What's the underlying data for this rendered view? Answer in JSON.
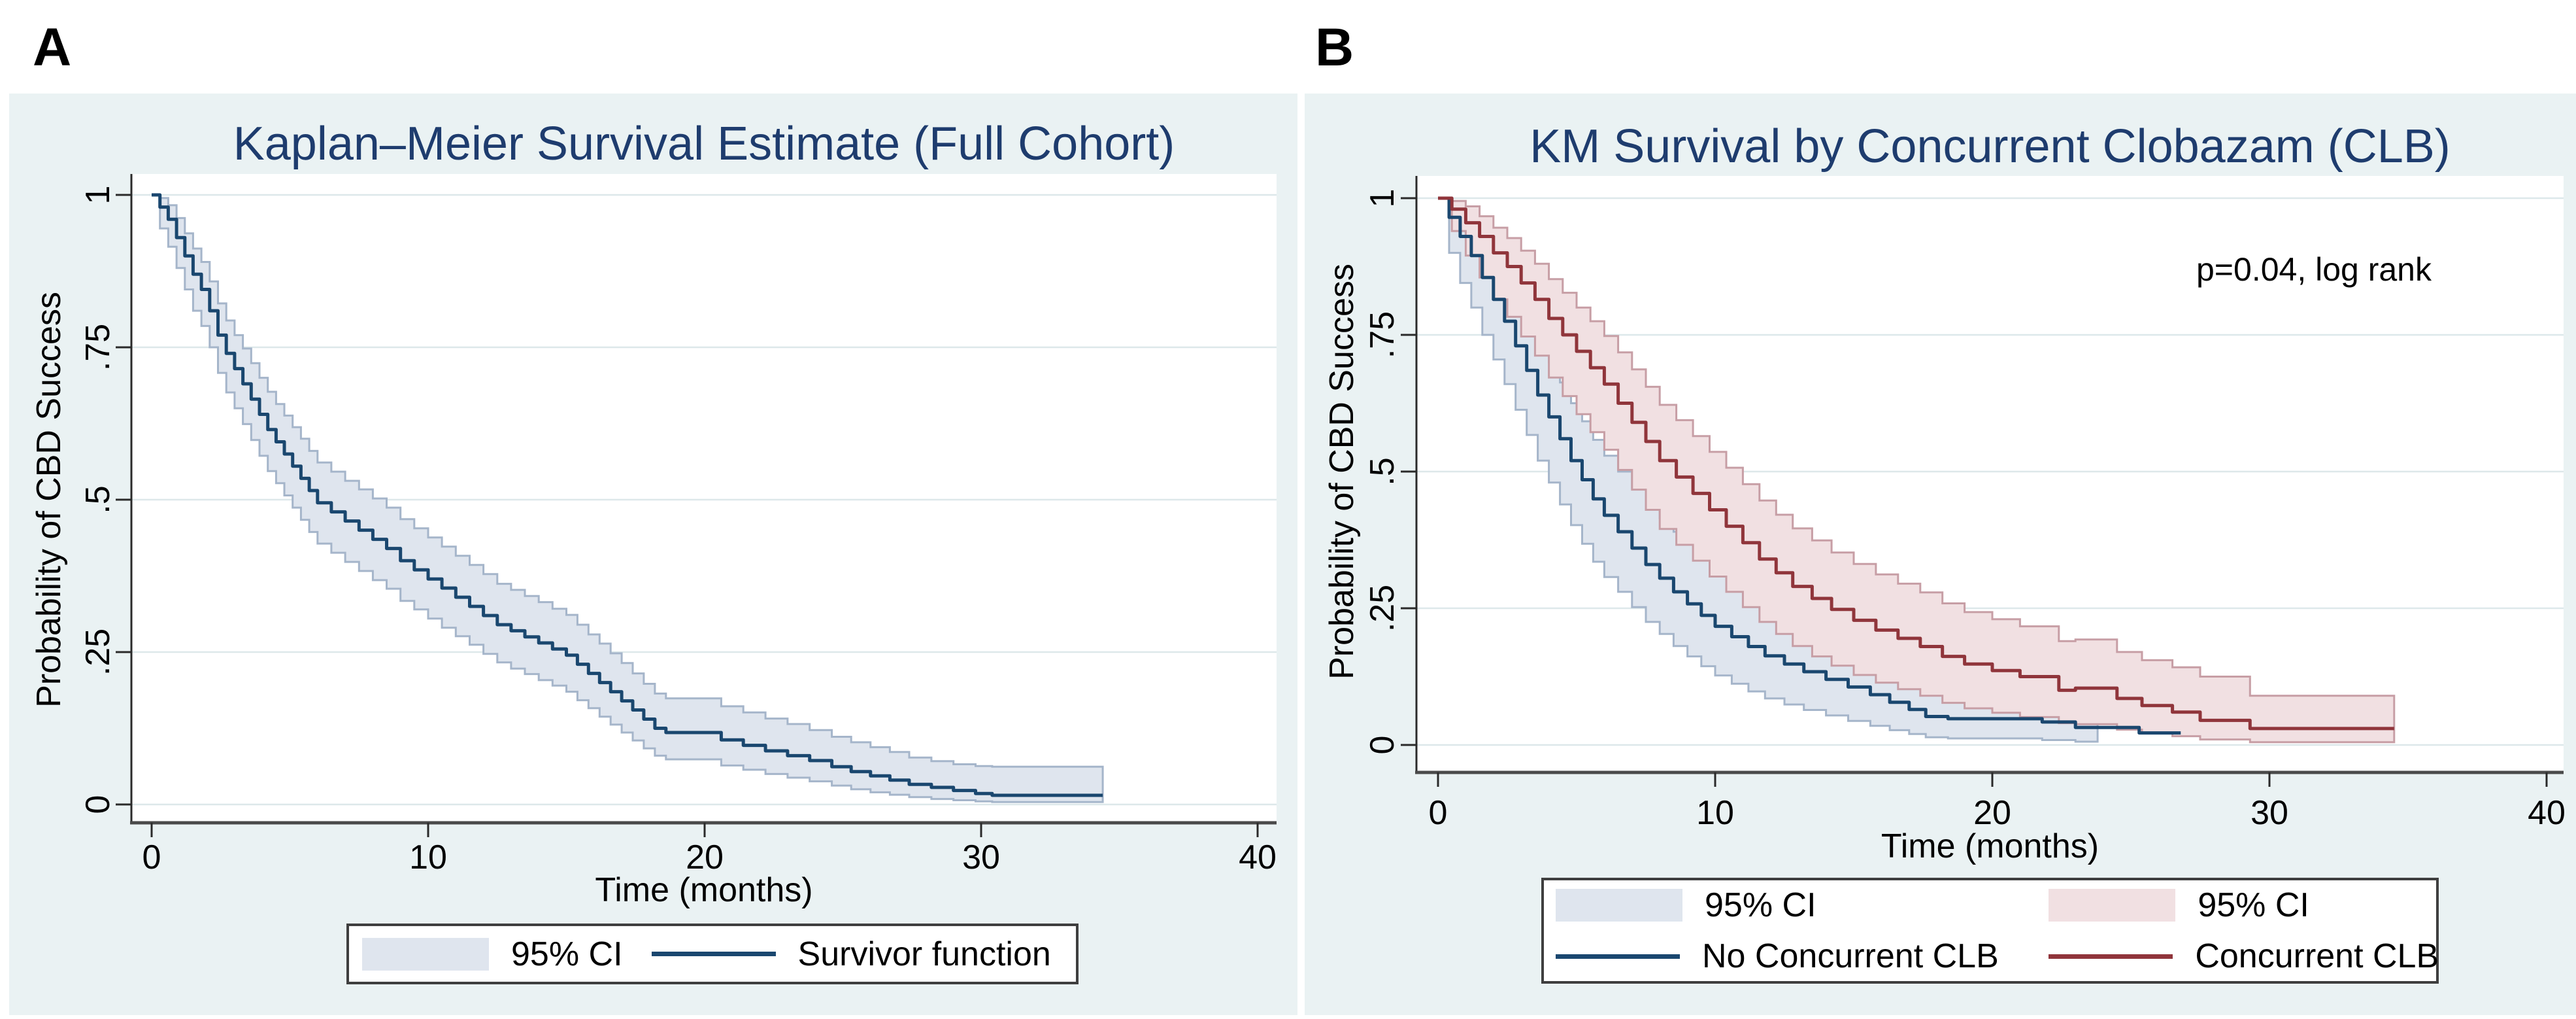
{
  "figure": {
    "panel_a_label": "A",
    "panel_b_label": "B"
  },
  "colors": {
    "panel_background": "#eaf2f3",
    "plot_background": "#ffffff",
    "gridline": "#dde8ea",
    "title_text": "#1e3c6e",
    "axis_line": "#4a4a4a",
    "navy_line": "#1a476f",
    "maroon_line": "#90353b",
    "blue_ci_fill": "#dfe5ee",
    "blue_ci_edge": "#a5b5ca",
    "pink_ci_fill": "#f1e0e2",
    "pink_ci_edge": "#c79ea5"
  },
  "chart_data": [
    {
      "type": "line",
      "subtype": "kaplan-meier-step",
      "panel": "A",
      "title": "Kaplan–Meier Survival Estimate (Full Cohort)",
      "xlabel": "Time (months)",
      "ylabel": "Probability of CBD Success",
      "annotation": "",
      "xlim": [
        0,
        40
      ],
      "ylim": [
        0,
        1
      ],
      "grid": true,
      "legend_position": "below-center",
      "x_ticks": [
        {
          "v": 0,
          "label": "0"
        },
        {
          "v": 10,
          "label": "10"
        },
        {
          "v": 20,
          "label": "20"
        },
        {
          "v": 30,
          "label": "30"
        },
        {
          "v": 40,
          "label": "40"
        }
      ],
      "y_ticks": [
        {
          "v": 0,
          "label": "0"
        },
        {
          "v": 0.25,
          "label": ".25"
        },
        {
          "v": 0.5,
          "label": ".5"
        },
        {
          "v": 0.75,
          "label": ".75"
        },
        {
          "v": 1,
          "label": "1"
        }
      ],
      "legend": [
        {
          "swatch": "band",
          "label": "95% CI",
          "fill": "#dfe5ee",
          "edge": "#a5b5ca"
        },
        {
          "swatch": "line",
          "label": "Survivor function",
          "color": "#1a476f"
        }
      ],
      "series": [
        {
          "name": "Survivor function",
          "line_color": "#1a476f",
          "band_fill": "#dfe5ee",
          "band_edge": "#a5b5ca",
          "t_end": 34.4,
          "ci_end": 34.4,
          "steps": [
            [
              0,
              1,
              1,
              1
            ],
            [
              0.3,
              0.98,
              0.945,
              0.995
            ],
            [
              0.6,
              0.96,
              0.915,
              0.983
            ],
            [
              0.9,
              0.93,
              0.88,
              0.962
            ],
            [
              1.2,
              0.9,
              0.845,
              0.937
            ],
            [
              1.5,
              0.87,
              0.81,
              0.912
            ],
            [
              1.8,
              0.845,
              0.785,
              0.89
            ],
            [
              2.1,
              0.81,
              0.75,
              0.858
            ],
            [
              2.4,
              0.77,
              0.708,
              0.822
            ],
            [
              2.7,
              0.74,
              0.676,
              0.794
            ],
            [
              3,
              0.715,
              0.65,
              0.77
            ],
            [
              3.3,
              0.69,
              0.624,
              0.748
            ],
            [
              3.6,
              0.665,
              0.598,
              0.724
            ],
            [
              3.9,
              0.64,
              0.572,
              0.7
            ],
            [
              4.2,
              0.615,
              0.547,
              0.677
            ],
            [
              4.5,
              0.595,
              0.527,
              0.657
            ],
            [
              4.8,
              0.575,
              0.507,
              0.638
            ],
            [
              5.1,
              0.555,
              0.487,
              0.619
            ],
            [
              5.4,
              0.535,
              0.467,
              0.6
            ],
            [
              5.7,
              0.515,
              0.447,
              0.58
            ],
            [
              6,
              0.495,
              0.428,
              0.561
            ],
            [
              6.5,
              0.48,
              0.413,
              0.546
            ],
            [
              7,
              0.465,
              0.398,
              0.531
            ],
            [
              7.5,
              0.45,
              0.383,
              0.517
            ],
            [
              8,
              0.435,
              0.368,
              0.502
            ],
            [
              8.5,
              0.42,
              0.354,
              0.487
            ],
            [
              9,
              0.4,
              0.334,
              0.468
            ],
            [
              9.5,
              0.385,
              0.32,
              0.453
            ],
            [
              10,
              0.37,
              0.305,
              0.438
            ],
            [
              10.5,
              0.355,
              0.29,
              0.423
            ],
            [
              11,
              0.34,
              0.276,
              0.408
            ],
            [
              11.5,
              0.325,
              0.262,
              0.393
            ],
            [
              12,
              0.31,
              0.247,
              0.378
            ],
            [
              12.5,
              0.295,
              0.233,
              0.362
            ],
            [
              13,
              0.285,
              0.223,
              0.352
            ],
            [
              13.5,
              0.275,
              0.214,
              0.342
            ],
            [
              14,
              0.265,
              0.204,
              0.332
            ],
            [
              14.5,
              0.255,
              0.195,
              0.321
            ],
            [
              15,
              0.245,
              0.185,
              0.311
            ],
            [
              15.4,
              0.23,
              0.171,
              0.295
            ],
            [
              15.8,
              0.215,
              0.158,
              0.279
            ],
            [
              16.2,
              0.2,
              0.144,
              0.264
            ],
            [
              16.6,
              0.185,
              0.131,
              0.248
            ],
            [
              17,
              0.17,
              0.118,
              0.232
            ],
            [
              17.4,
              0.155,
              0.105,
              0.215
            ],
            [
              17.8,
              0.14,
              0.092,
              0.198
            ],
            [
              18.2,
              0.125,
              0.08,
              0.182
            ],
            [
              18.6,
              0.118,
              0.074,
              0.174
            ],
            [
              20.6,
              0.106,
              0.064,
              0.161
            ],
            [
              21.4,
              0.097,
              0.057,
              0.151
            ],
            [
              22.2,
              0.088,
              0.05,
              0.141
            ],
            [
              23,
              0.08,
              0.044,
              0.132
            ],
            [
              23.8,
              0.072,
              0.038,
              0.122
            ],
            [
              24.6,
              0.062,
              0.031,
              0.111
            ],
            [
              25.3,
              0.054,
              0.025,
              0.102
            ],
            [
              26,
              0.047,
              0.02,
              0.094
            ],
            [
              26.7,
              0.04,
              0.016,
              0.086
            ],
            [
              27.4,
              0.033,
              0.012,
              0.077
            ],
            [
              28.2,
              0.028,
              0.009,
              0.071
            ],
            [
              29,
              0.023,
              0.007,
              0.066
            ],
            [
              29.8,
              0.018,
              0.005,
              0.063
            ],
            [
              30.4,
              0.015,
              0.004,
              0.062
            ]
          ]
        }
      ]
    },
    {
      "type": "line",
      "subtype": "kaplan-meier-step",
      "panel": "B",
      "title": "KM Survival by Concurrent Clobazam (CLB)",
      "xlabel": "Time (months)",
      "ylabel": "Probability of CBD Success",
      "annotation": "p=0.04, log rank",
      "xlim": [
        0,
        40
      ],
      "ylim": [
        0,
        1
      ],
      "grid": true,
      "legend_position": "below-center",
      "x_ticks": [
        {
          "v": 0,
          "label": "0"
        },
        {
          "v": 10,
          "label": "10"
        },
        {
          "v": 20,
          "label": "20"
        },
        {
          "v": 30,
          "label": "30"
        },
        {
          "v": 40,
          "label": "40"
        }
      ],
      "y_ticks": [
        {
          "v": 0,
          "label": "0"
        },
        {
          "v": 0.25,
          "label": ".25"
        },
        {
          "v": 0.5,
          "label": ".5"
        },
        {
          "v": 0.75,
          "label": ".75"
        },
        {
          "v": 1,
          "label": "1"
        }
      ],
      "legend": [
        {
          "swatch": "band",
          "label": "95% CI",
          "fill": "#dfe5ee",
          "edge": "#a5b5ca"
        },
        {
          "swatch": "band",
          "label": "95% CI",
          "fill": "#f1e0e2",
          "edge": "#c79ea5"
        },
        {
          "swatch": "line",
          "label": "No Concurrent CLB",
          "color": "#1a476f"
        },
        {
          "swatch": "line",
          "label": "Concurrent CLB",
          "color": "#90353b"
        }
      ],
      "series": [
        {
          "name": "No Concurrent CLB",
          "line_color": "#1a476f",
          "band_fill": "#dfe5ee",
          "band_edge": "#a5b5ca",
          "t_end": 26.8,
          "ci_end": 23.8,
          "steps": [
            [
              0,
              1,
              1,
              1
            ],
            [
              0.4,
              0.965,
              0.9,
              0.99
            ],
            [
              0.8,
              0.93,
              0.845,
              0.968
            ],
            [
              1.2,
              0.895,
              0.8,
              0.945
            ],
            [
              1.6,
              0.855,
              0.75,
              0.92
            ],
            [
              2,
              0.815,
              0.705,
              0.888
            ],
            [
              2.4,
              0.775,
              0.66,
              0.855
            ],
            [
              2.8,
              0.73,
              0.613,
              0.818
            ],
            [
              3.2,
              0.685,
              0.567,
              0.779
            ],
            [
              3.6,
              0.64,
              0.52,
              0.738
            ],
            [
              4,
              0.6,
              0.48,
              0.7
            ],
            [
              4.4,
              0.56,
              0.44,
              0.663
            ],
            [
              4.8,
              0.52,
              0.402,
              0.625
            ],
            [
              5.2,
              0.485,
              0.368,
              0.592
            ],
            [
              5.6,
              0.45,
              0.335,
              0.558
            ],
            [
              6,
              0.42,
              0.307,
              0.529
            ],
            [
              6.5,
              0.39,
              0.28,
              0.5
            ],
            [
              7,
              0.36,
              0.252,
              0.47
            ],
            [
              7.5,
              0.33,
              0.225,
              0.44
            ],
            [
              8,
              0.305,
              0.203,
              0.415
            ],
            [
              8.5,
              0.28,
              0.181,
              0.39
            ],
            [
              9,
              0.258,
              0.162,
              0.367
            ],
            [
              9.5,
              0.237,
              0.144,
              0.345
            ],
            [
              10,
              0.217,
              0.127,
              0.325
            ],
            [
              10.6,
              0.198,
              0.112,
              0.305
            ],
            [
              11.2,
              0.18,
              0.098,
              0.285
            ],
            [
              11.8,
              0.163,
              0.085,
              0.267
            ],
            [
              12.5,
              0.148,
              0.074,
              0.25
            ],
            [
              13.2,
              0.134,
              0.064,
              0.234
            ],
            [
              14,
              0.12,
              0.054,
              0.218
            ],
            [
              14.8,
              0.106,
              0.044,
              0.2
            ],
            [
              15.6,
              0.092,
              0.035,
              0.183
            ],
            [
              16.3,
              0.078,
              0.027,
              0.166
            ],
            [
              17,
              0.065,
              0.02,
              0.15
            ],
            [
              17.6,
              0.052,
              0.014,
              0.133
            ],
            [
              18.4,
              0.048,
              0.012,
              0.128
            ],
            [
              21.8,
              0.042,
              0.009,
              0.12
            ],
            [
              23,
              0.032,
              0.006,
              0.11
            ],
            [
              25.3,
              0.022,
              0.005,
              0.1
            ]
          ]
        },
        {
          "name": "Concurrent CLB",
          "line_color": "#90353b",
          "band_fill": "#f1e0e2",
          "band_edge": "#c79ea5",
          "t_end": 34.5,
          "ci_end": 34.5,
          "steps": [
            [
              0,
              1,
              1,
              1
            ],
            [
              0.5,
              0.98,
              0.94,
              0.995
            ],
            [
              1,
              0.955,
              0.895,
              0.985
            ],
            [
              1.5,
              0.93,
              0.855,
              0.967
            ],
            [
              2,
              0.9,
              0.815,
              0.946
            ],
            [
              2.5,
              0.875,
              0.783,
              0.927
            ],
            [
              3,
              0.845,
              0.747,
              0.904
            ],
            [
              3.5,
              0.815,
              0.712,
              0.88
            ],
            [
              4,
              0.78,
              0.672,
              0.852
            ],
            [
              4.5,
              0.75,
              0.638,
              0.827
            ],
            [
              5,
              0.72,
              0.605,
              0.8
            ],
            [
              5.5,
              0.69,
              0.572,
              0.775
            ],
            [
              6,
              0.66,
              0.54,
              0.748
            ],
            [
              6.5,
              0.625,
              0.503,
              0.718
            ],
            [
              7,
              0.59,
              0.467,
              0.687
            ],
            [
              7.5,
              0.555,
              0.43,
              0.655
            ],
            [
              8,
              0.52,
              0.395,
              0.622
            ],
            [
              8.6,
              0.49,
              0.366,
              0.594
            ],
            [
              9.2,
              0.46,
              0.337,
              0.565
            ],
            [
              9.8,
              0.43,
              0.308,
              0.536
            ],
            [
              10.4,
              0.4,
              0.28,
              0.507
            ],
            [
              11,
              0.37,
              0.252,
              0.477
            ],
            [
              11.6,
              0.34,
              0.225,
              0.447
            ],
            [
              12.2,
              0.315,
              0.203,
              0.421
            ],
            [
              12.8,
              0.29,
              0.181,
              0.396
            ],
            [
              13.5,
              0.268,
              0.162,
              0.374
            ],
            [
              14.2,
              0.248,
              0.145,
              0.352
            ],
            [
              15,
              0.228,
              0.128,
              0.331
            ],
            [
              15.8,
              0.21,
              0.114,
              0.312
            ],
            [
              16.6,
              0.195,
              0.102,
              0.295
            ],
            [
              17.4,
              0.18,
              0.09,
              0.279
            ],
            [
              18.2,
              0.162,
              0.077,
              0.259
            ],
            [
              19,
              0.148,
              0.067,
              0.243
            ],
            [
              20,
              0.136,
              0.059,
              0.23
            ],
            [
              21,
              0.125,
              0.051,
              0.217
            ],
            [
              22.4,
              0.1,
              0.04,
              0.19
            ],
            [
              23,
              0.104,
              0.038,
              0.193
            ],
            [
              24.5,
              0.085,
              0.028,
              0.17
            ],
            [
              25.4,
              0.072,
              0.022,
              0.155
            ],
            [
              26.5,
              0.06,
              0.016,
              0.142
            ],
            [
              27.5,
              0.045,
              0.01,
              0.125
            ],
            [
              29.3,
              0.03,
              0.005,
              0.09
            ]
          ]
        }
      ]
    }
  ]
}
